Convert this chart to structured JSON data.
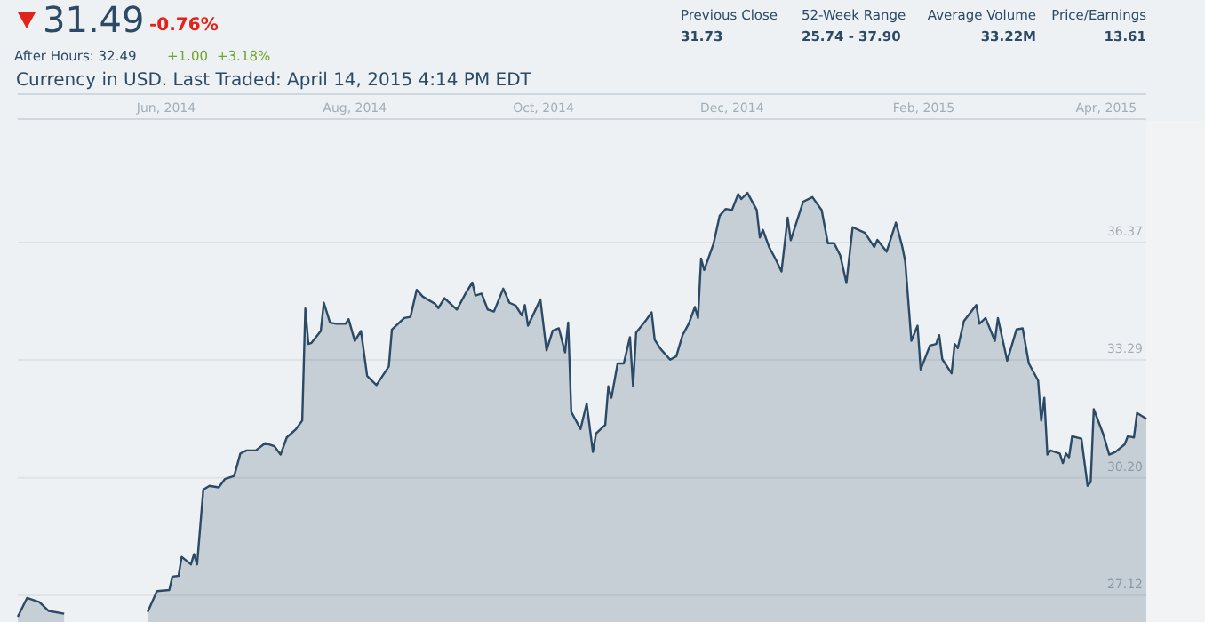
{
  "chart_data": {
    "type": "area",
    "color": "#2c4a66",
    "annotations": [
      "31.49",
      "-0.76%",
      "After Hours: 32.49",
      "+1.00",
      "+3.18%",
      "Previous Close",
      "31.73",
      "52-Week Range",
      "25.74 - 37.90",
      "Average Volume",
      "33.22M",
      "Price/Earnings",
      "13.61",
      "Currency in USD. Last Traded: April 14, 2015 4:14 PM EDT"
    ],
    "x": [
      "2014-04-14",
      "2014-04-17",
      "2014-04-21",
      "2014-04-24",
      "2014-04-29",
      "2014-05-10",
      "2014-05-26",
      "2014-05-29",
      "2014-06-02",
      "2014-06-03",
      "2014-06-05",
      "2014-06-06",
      "2014-06-09",
      "2014-06-10",
      "2014-06-11",
      "2014-06-13",
      "2014-06-15",
      "2014-06-18",
      "2014-06-20",
      "2014-06-23",
      "2014-06-25",
      "2014-06-27",
      "2014-06-30",
      "2014-07-03",
      "2014-07-06",
      "2014-07-08",
      "2014-07-10",
      "2014-07-13",
      "2014-07-15",
      "2014-07-16",
      "2014-07-17",
      "2014-07-18",
      "2014-07-21",
      "2014-07-22",
      "2014-07-24",
      "2014-07-26",
      "2014-07-29",
      "2014-07-30",
      "2014-08-01",
      "2014-08-03",
      "2014-08-05",
      "2014-08-08",
      "2014-08-12",
      "2014-08-13",
      "2014-08-15",
      "2014-08-17",
      "2014-08-19",
      "2014-08-21",
      "2014-08-23",
      "2014-08-27",
      "2014-08-28",
      "2014-08-30",
      "2014-09-03",
      "2014-09-06",
      "2014-09-08",
      "2014-09-09",
      "2014-09-11",
      "2014-09-13",
      "2014-09-15",
      "2014-09-18",
      "2014-09-20",
      "2014-09-22",
      "2014-09-24",
      "2014-09-25",
      "2014-09-26",
      "2014-09-30",
      "2014-10-02",
      "2014-10-04",
      "2014-10-06",
      "2014-10-08",
      "2014-10-09",
      "2014-10-10",
      "2014-10-13",
      "2014-10-15",
      "2014-10-17",
      "2014-10-18",
      "2014-10-21",
      "2014-10-22",
      "2014-10-23",
      "2014-10-25",
      "2014-10-27",
      "2014-10-29",
      "2014-10-30",
      "2014-10-31",
      "2014-11-03",
      "2014-11-05",
      "2014-11-06",
      "2014-11-08",
      "2014-11-11",
      "2014-11-13",
      "2014-11-15",
      "2014-11-17",
      "2014-11-19",
      "2014-11-20",
      "2014-11-21",
      "2014-11-22",
      "2014-11-25",
      "2014-11-27",
      "2014-11-29",
      "2014-12-01",
      "2014-12-03",
      "2014-12-04",
      "2014-12-06",
      "2014-12-09",
      "2014-12-10",
      "2014-12-11",
      "2014-12-13",
      "2014-12-15",
      "2014-12-17",
      "2014-12-19",
      "2014-12-20",
      "2014-12-24",
      "2014-12-27",
      "2014-12-30",
      "2015-01-01",
      "2015-01-03",
      "2015-01-05",
      "2015-01-07",
      "2015-01-09",
      "2015-01-13",
      "2015-01-16",
      "2015-01-17",
      "2015-01-20",
      "2015-01-23",
      "2015-01-25",
      "2015-01-26",
      "2015-01-28",
      "2015-01-30",
      "2015-01-31",
      "2015-02-03",
      "2015-02-05",
      "2015-02-06",
      "2015-02-07",
      "2015-02-10",
      "2015-02-11",
      "2015-02-12",
      "2015-02-14",
      "2015-02-18",
      "2015-02-19",
      "2015-02-21",
      "2015-02-24",
      "2015-02-25",
      "2015-02-28",
      "2015-03-03",
      "2015-03-05",
      "2015-03-07",
      "2015-03-10",
      "2015-03-11",
      "2015-03-12",
      "2015-03-13",
      "2015-03-14",
      "2015-03-17",
      "2015-03-18",
      "2015-03-19",
      "2015-03-20",
      "2015-03-21",
      "2015-03-24",
      "2015-03-26",
      "2015-03-27",
      "2015-03-28",
      "2015-03-31",
      "2015-04-02",
      "2015-04-04",
      "2015-04-07",
      "2015-04-08",
      "2015-04-10",
      "2015-04-11",
      "2015-04-14"
    ],
    "values": [
      26.56,
      27.05,
      26.94,
      26.71,
      26.64,
      null,
      26.68,
      27.23,
      27.26,
      27.61,
      27.63,
      28.13,
      27.93,
      28.2,
      27.93,
      29.89,
      29.99,
      29.95,
      30.17,
      30.25,
      30.84,
      30.92,
      30.92,
      31.11,
      31.03,
      30.81,
      31.26,
      31.48,
      31.7,
      34.64,
      33.71,
      33.74,
      34.05,
      34.79,
      34.27,
      34.24,
      34.24,
      34.36,
      33.79,
      34.05,
      32.87,
      32.63,
      33.12,
      34.09,
      34.24,
      34.39,
      34.42,
      35.13,
      34.95,
      34.76,
      34.65,
      34.91,
      34.61,
      35.06,
      35.32,
      34.98,
      35.03,
      34.61,
      34.56,
      35.16,
      34.79,
      34.72,
      34.46,
      34.73,
      34.19,
      34.88,
      33.54,
      34.06,
      34.12,
      33.49,
      34.27,
      31.93,
      31.48,
      32.15,
      30.88,
      31.36,
      31.59,
      32.6,
      32.3,
      33.2,
      33.2,
      33.89,
      32.6,
      34.01,
      34.31,
      34.54,
      33.82,
      33.57,
      33.3,
      33.39,
      33.94,
      34.24,
      34.68,
      34.39,
      35.95,
      35.65,
      36.33,
      37.07,
      37.25,
      37.22,
      37.64,
      37.51,
      37.67,
      37.22,
      36.5,
      36.7,
      36.25,
      35.95,
      35.61,
      37.02,
      36.43,
      37.44,
      37.56,
      37.22,
      36.35,
      36.35,
      36.03,
      35.31,
      36.77,
      36.62,
      36.25,
      36.44,
      36.13,
      36.89,
      36.28,
      35.88,
      33.79,
      34.19,
      33.04,
      33.67,
      33.71,
      33.94,
      33.31,
      32.94,
      33.71,
      33.6,
      34.31,
      34.73,
      34.24,
      34.39,
      33.79,
      34.39,
      33.27,
      34.09,
      34.12,
      33.2,
      32.75,
      31.7,
      32.3,
      30.81,
      30.92,
      30.84,
      30.59,
      30.84,
      30.74,
      31.29,
      31.23,
      29.99,
      30.09,
      32.0,
      31.36,
      30.81,
      30.88,
      31.08,
      31.29,
      31.26,
      31.9,
      31.75
    ],
    "xlim": [
      "2014-04-14",
      "2015-04-14"
    ],
    "xticks": [
      {
        "value": "2014-06-01",
        "label": "Jun, 2014"
      },
      {
        "value": "2014-08-01",
        "label": "Aug, 2014"
      },
      {
        "value": "2014-10-01",
        "label": "Oct, 2014"
      },
      {
        "value": "2014-12-01",
        "label": "Dec, 2014"
      },
      {
        "value": "2015-02-01",
        "label": "Feb, 2015"
      },
      {
        "value": "2015-04-01",
        "label": "Apr, 2015"
      }
    ],
    "ylim": [
      26.42,
      39.56
    ],
    "yticks": [
      27.12,
      {
        "value": 30.2,
        "label": "30.20"
      },
      33.29,
      36.37
    ],
    "grid": "y",
    "marker": "none",
    "line_style": "solid"
  }
}
